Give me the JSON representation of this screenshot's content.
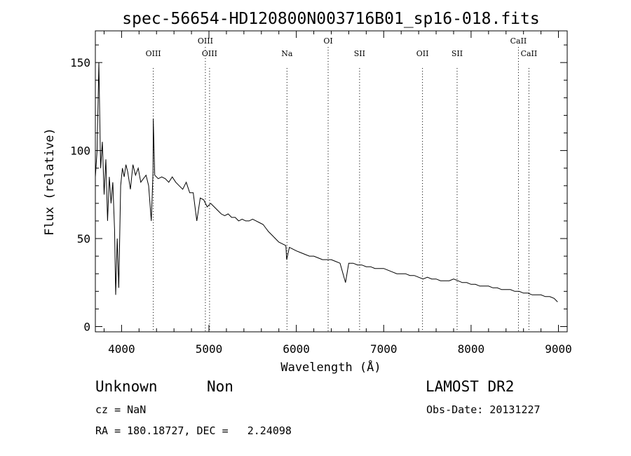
{
  "chart_data": {
    "type": "line",
    "title": "spec-56654-HD120800N003716B01_sp16-018.fits",
    "xlabel": "Wavelength (Å)",
    "ylabel": "Flux (relative)",
    "xlim": [
      3700,
      9100
    ],
    "ylim": [
      -3,
      168
    ],
    "x_ticks": [
      4000,
      5000,
      6000,
      7000,
      8000,
      9000
    ],
    "y_ticks": [
      0,
      50,
      100,
      150
    ],
    "grid": false,
    "series": [
      {
        "x": [
          3700,
          3720,
          3740,
          3760,
          3780,
          3800,
          3820,
          3840,
          3860,
          3880,
          3900,
          3920,
          3933,
          3950,
          3968,
          3990,
          4010,
          4030,
          4050,
          4070,
          4101,
          4130,
          4160,
          4190,
          4220,
          4250,
          4280,
          4310,
          4340,
          4360,
          4363,
          4380,
          4420,
          4460,
          4500,
          4540,
          4580,
          4620,
          4660,
          4700,
          4740,
          4780,
          4820,
          4861,
          4900,
          4940,
          4980,
          5020,
          5060,
          5100,
          5140,
          5180,
          5220,
          5260,
          5300,
          5340,
          5380,
          5420,
          5460,
          5500,
          5540,
          5580,
          5620,
          5650,
          5680,
          5720,
          5760,
          5800,
          5840,
          5880,
          5890,
          5920,
          5960,
          6000,
          6050,
          6100,
          6150,
          6200,
          6250,
          6300,
          6350,
          6400,
          6450,
          6500,
          6563,
          6600,
          6650,
          6700,
          6750,
          6800,
          6850,
          6900,
          6950,
          7000,
          7050,
          7100,
          7150,
          7200,
          7250,
          7300,
          7350,
          7400,
          7450,
          7500,
          7550,
          7600,
          7650,
          7700,
          7750,
          7800,
          7850,
          7900,
          7950,
          8000,
          8050,
          8100,
          8150,
          8200,
          8250,
          8300,
          8350,
          8400,
          8450,
          8500,
          8550,
          8600,
          8650,
          8700,
          8750,
          8800,
          8850,
          8900,
          8950,
          8990
        ],
        "y": [
          85,
          100,
          150,
          90,
          105,
          75,
          95,
          60,
          85,
          70,
          82,
          55,
          18,
          50,
          22,
          80,
          90,
          85,
          92,
          88,
          78,
          92,
          86,
          90,
          82,
          84,
          86,
          80,
          60,
          88,
          118,
          86,
          84,
          85,
          84,
          82,
          85,
          82,
          80,
          78,
          82,
          76,
          76,
          60,
          73,
          72,
          68,
          70,
          68,
          66,
          64,
          63,
          64,
          62,
          62,
          60,
          61,
          60,
          60,
          61,
          60,
          59,
          58,
          56,
          54,
          52,
          50,
          48,
          47,
          46,
          38,
          45,
          44,
          43,
          42,
          41,
          40,
          40,
          39,
          38,
          38,
          38,
          37,
          36,
          25,
          36,
          36,
          35,
          35,
          34,
          34,
          33,
          33,
          33,
          32,
          31,
          30,
          30,
          30,
          29,
          29,
          28,
          27,
          28,
          27,
          27,
          26,
          26,
          26,
          27,
          26,
          25,
          25,
          24,
          24,
          23,
          23,
          23,
          22,
          22,
          21,
          21,
          21,
          20,
          20,
          19,
          19,
          18,
          18,
          18,
          17,
          17,
          16,
          14
        ]
      }
    ],
    "line_markers": [
      {
        "label": "OIII",
        "x": 4363,
        "row": "low"
      },
      {
        "label": "OIII",
        "x": 4959,
        "row": "high"
      },
      {
        "label": "OIII",
        "x": 5007,
        "row": "low"
      },
      {
        "label": "Na",
        "x": 5893,
        "row": "low"
      },
      {
        "label": "OI",
        "x": 6364,
        "row": "high"
      },
      {
        "label": "SII",
        "x": 6724,
        "row": "low"
      },
      {
        "label": "OII",
        "x": 7444,
        "row": "low"
      },
      {
        "label": "SII",
        "x": 7840,
        "row": "low"
      },
      {
        "label": "CaII",
        "x": 8542,
        "row": "high"
      },
      {
        "label": "CaII",
        "x": 8662,
        "row": "low"
      }
    ]
  },
  "info": {
    "object_class": "Unknown",
    "subclass": "Non",
    "survey": "LAMOST DR2",
    "cz": "cz = NaN",
    "obs_date": "Obs-Date: 20131227",
    "radec": "RA = 180.18727, DEC =   2.24098"
  }
}
